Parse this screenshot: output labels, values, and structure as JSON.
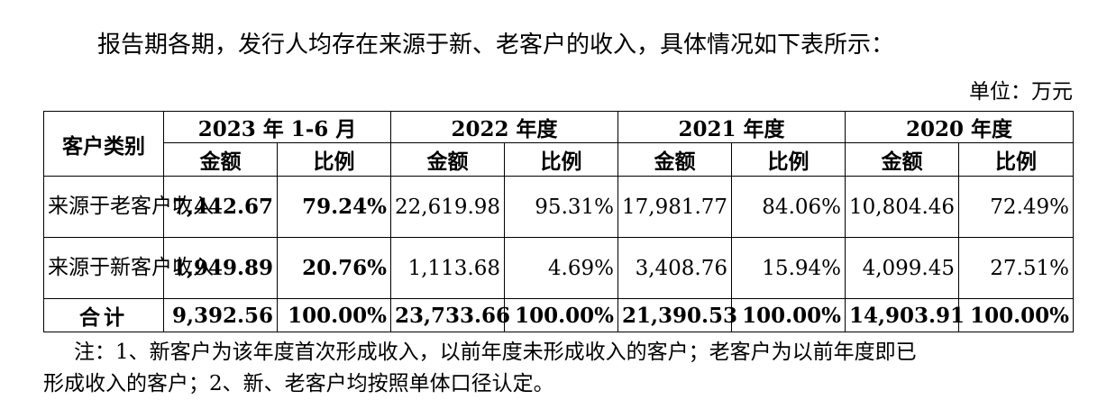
{
  "intro": "报告期各期，发行人均存在来源于新、老客户的收入，具体情况如下表所示：",
  "unit": "单位：万元",
  "table": {
    "category_header": "客户类别",
    "periods": [
      "2023 年 1-6 月",
      "2022 年度",
      "2021 年度",
      "2020 年度"
    ],
    "sub_headers": [
      "金额",
      "比例",
      "金额",
      "比例",
      "金额",
      "比例",
      "金额",
      "比例"
    ],
    "rows": [
      {
        "category": "来源于老客户收入",
        "cells": [
          "7,442.67",
          "79.24%",
          "22,619.98",
          "95.31%",
          "17,981.77",
          "84.06%",
          "10,804.46",
          "72.49%"
        ]
      },
      {
        "category": "来源于新客户收入",
        "cells": [
          "1,949.89",
          "20.76%",
          "1,113.68",
          "4.69%",
          "3,408.76",
          "15.94%",
          "4,099.45",
          "27.51%"
        ]
      },
      {
        "category": "合计",
        "cells": [
          "9,392.56",
          "100.00%",
          "23,733.66",
          "100.00%",
          "21,390.53",
          "100.00%",
          "14,903.91",
          "100.00%"
        ]
      }
    ]
  },
  "note_line1": "注：1、新客户为该年度首次形成收入，以前年度未形成收入的客户；老客户为以前年度即已",
  "note_line2": "形成收入的客户；2、新、老客户均按照单体口径认定。"
}
